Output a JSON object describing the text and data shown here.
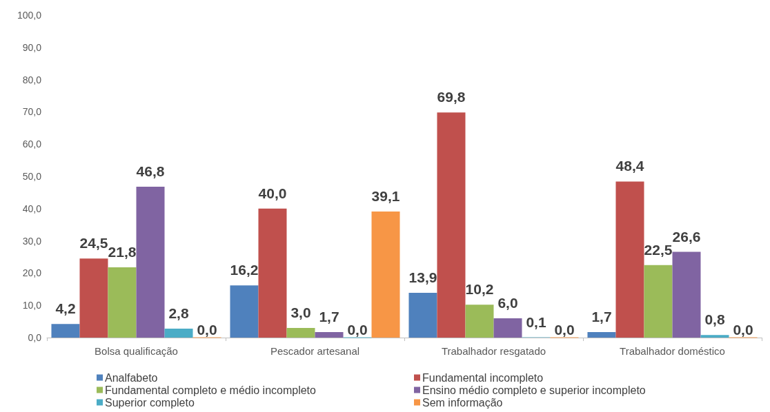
{
  "chart_data": {
    "type": "bar",
    "categories": [
      "Bolsa qualificação",
      "Pescador artesanal",
      "Trabalhador resgatado",
      "Trabalhador doméstico"
    ],
    "series": [
      {
        "name": "Analfabeto",
        "color": "#4f81bd",
        "values": [
          4.2,
          16.2,
          13.9,
          1.7
        ],
        "value_labels": [
          "4,2",
          "16,2",
          "13,9",
          "1,7"
        ]
      },
      {
        "name": "Fundamental incompleto",
        "color": "#c0504d",
        "values": [
          24.5,
          40.0,
          69.8,
          48.4
        ],
        "value_labels": [
          "24,5",
          "40,0",
          "69,8",
          "48,4"
        ]
      },
      {
        "name": "Fundamental completo e médio incompleto",
        "color": "#9bbb59",
        "values": [
          21.8,
          3.0,
          10.2,
          22.5
        ],
        "value_labels": [
          "21,8",
          "3,0",
          "10,2",
          "22,5"
        ]
      },
      {
        "name": "Ensino médio completo e superior incompleto",
        "color": "#8064a2",
        "values": [
          46.8,
          1.7,
          6.0,
          26.6
        ],
        "value_labels": [
          "46,8",
          "1,7",
          "6,0",
          "26,6"
        ]
      },
      {
        "name": "Superior completo",
        "color": "#4bacc6",
        "values": [
          2.8,
          0.0,
          0.1,
          0.8
        ],
        "value_labels": [
          "2,8",
          "0,0",
          "0,1",
          "0,8"
        ]
      },
      {
        "name": "Sem informação",
        "color": "#f79646",
        "values": [
          0.0,
          39.1,
          0.0,
          0.0
        ],
        "value_labels": [
          "0,0",
          "39,1",
          "0,0",
          "0,0"
        ]
      }
    ],
    "ylim": [
      0,
      100
    ],
    "yticks": [
      {
        "value": 0,
        "label": "0,0"
      },
      {
        "value": 10,
        "label": "10,0"
      },
      {
        "value": 20,
        "label": "20,0"
      },
      {
        "value": 30,
        "label": "30,0"
      },
      {
        "value": 40,
        "label": "40,0"
      },
      {
        "value": 50,
        "label": "50,0"
      },
      {
        "value": 60,
        "label": "60,0"
      },
      {
        "value": 70,
        "label": "70,0"
      },
      {
        "value": 80,
        "label": "80,0"
      },
      {
        "value": 90,
        "label": "90,0"
      },
      {
        "value": 100,
        "label": "100,0"
      }
    ],
    "grid": false,
    "legend": "bottom"
  }
}
